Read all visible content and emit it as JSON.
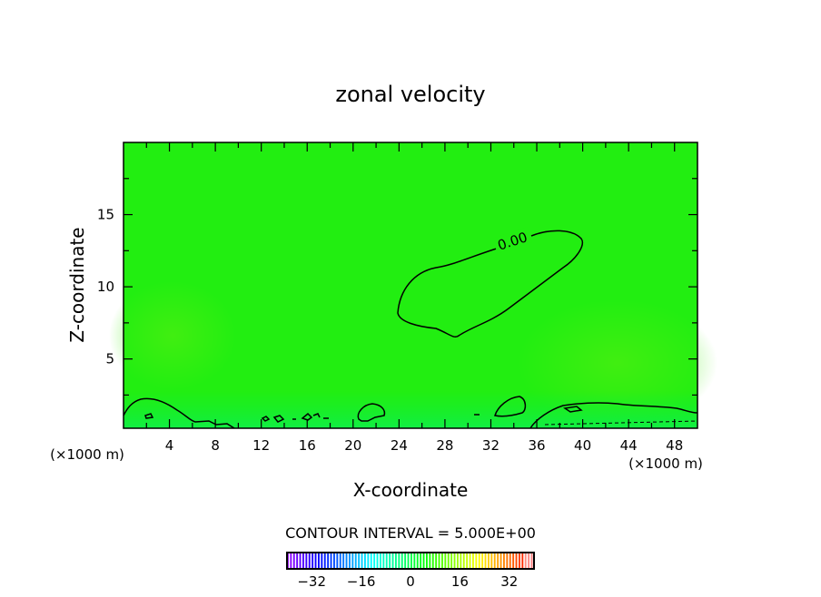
{
  "chart_data": {
    "type": "heatmap",
    "title": "zonal velocity",
    "xlabel": "X-coordinate",
    "ylabel": "Z-coordinate",
    "x_unit_label": "(×1000 m)",
    "y_unit_label": "(×1000 m)",
    "xlim": [
      0,
      50
    ],
    "ylim": [
      0.2,
      20
    ],
    "x_ticks": [
      4,
      8,
      12,
      16,
      20,
      24,
      28,
      32,
      36,
      40,
      44,
      48
    ],
    "y_ticks": [
      5,
      10,
      15
    ],
    "contour_labels": [
      "0.00"
    ],
    "contour_interval_text": "CONTOUR INTERVAL = 5.000E+00",
    "colorbar": {
      "range": [
        -40,
        40
      ],
      "ticks": [
        -32,
        -16,
        0,
        16,
        32
      ]
    },
    "field_colors": {
      "background": "#22ee11",
      "low_region": "#11ee44",
      "high_region": "#44ee11"
    }
  }
}
